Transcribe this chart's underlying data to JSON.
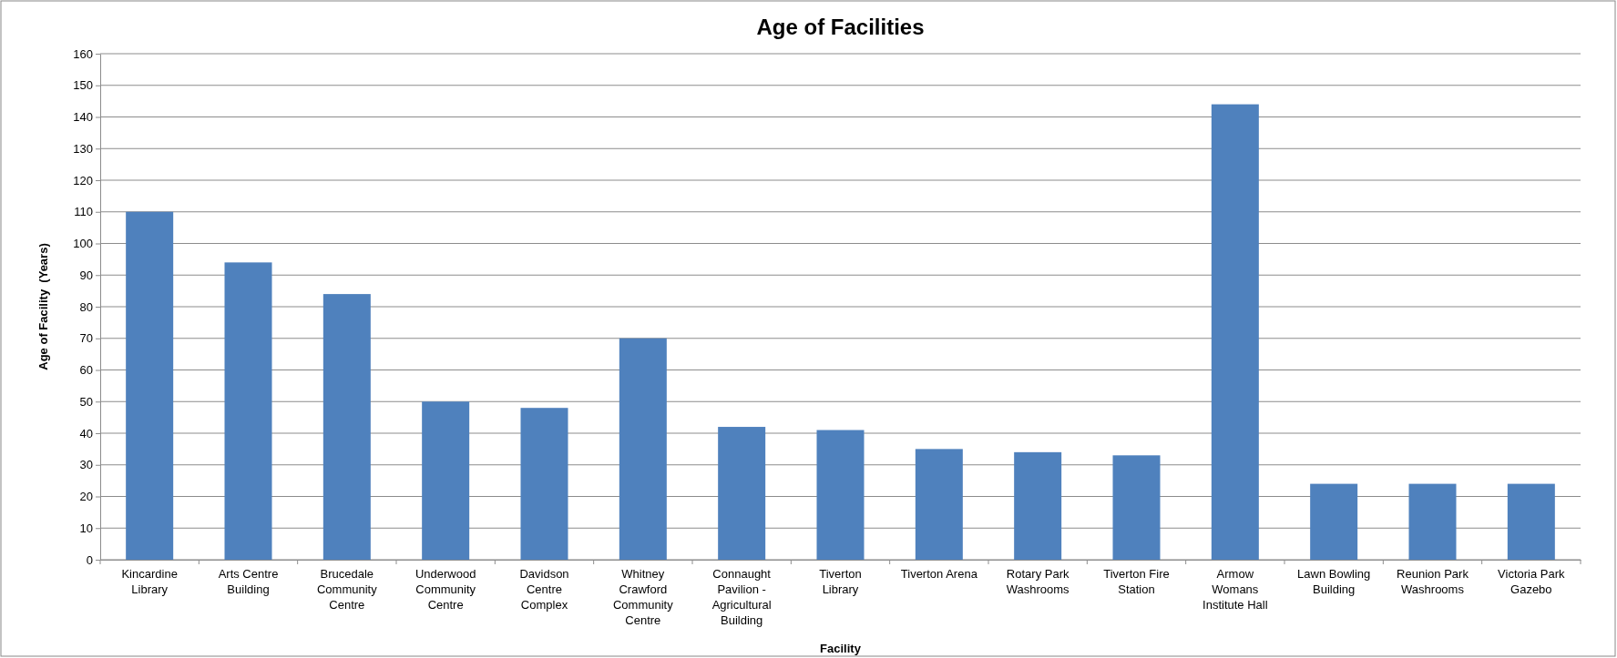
{
  "chart_data": {
    "type": "bar",
    "title": "Age of Facilities",
    "xlabel": "Facility",
    "ylabel": "Age of Facility  (Years)",
    "categories": [
      "Kincardine Library",
      "Arts Centre Building",
      "Brucedale Community Centre",
      "Underwood Community Centre",
      "Davidson Centre Complex",
      "Whitney Crawford Community Centre",
      "Connaught Pavilion - Agricultural Building",
      "Tiverton Library",
      "Tiverton Arena",
      "Rotary Park Washrooms",
      "Tiverton Fire Station",
      "Armow Womans Institute Hall",
      "Lawn Bowling Building",
      "Reunion Park Washrooms",
      "Victoria Park Gazebo"
    ],
    "values": [
      110,
      94,
      84,
      50,
      48,
      70,
      42,
      41,
      35,
      34,
      33,
      144,
      24,
      24,
      24
    ],
    "color": "#4f81bd",
    "ylim": [
      0,
      160
    ],
    "yticks": [
      0,
      10,
      20,
      30,
      40,
      50,
      60,
      70,
      80,
      90,
      100,
      110,
      120,
      130,
      140,
      150,
      160
    ],
    "grid": "y"
  }
}
